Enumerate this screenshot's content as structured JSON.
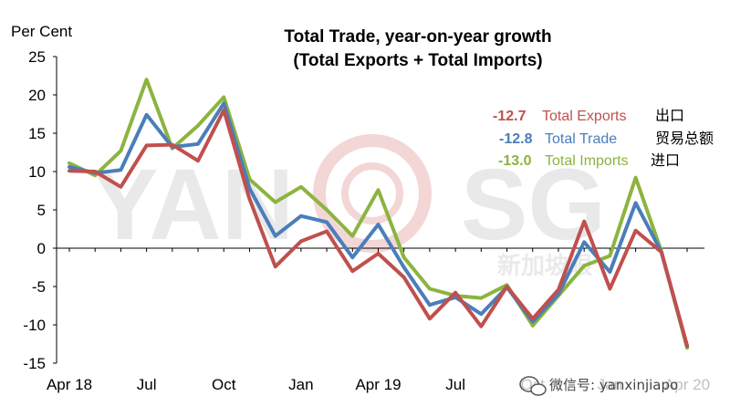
{
  "watermark": {
    "text_left": "YAN",
    "text_right": "SG",
    "text_cn": "新加坡眼"
  },
  "footer": {
    "wechat_text": "微信号: yanxinjiapo"
  },
  "chart_data": {
    "type": "line",
    "title_line1": "Total Trade, year-on-year growth",
    "title_line2": "(Total Exports + Total Imports)",
    "ylabel": "Per Cent",
    "ylim": [
      -15,
      25
    ],
    "yticks": [
      25,
      20,
      15,
      10,
      5,
      0,
      -5,
      -10,
      -15
    ],
    "x_tick_labels": [
      {
        "index": 0,
        "label": "Apr 18"
      },
      {
        "index": 3,
        "label": "Jul"
      },
      {
        "index": 6,
        "label": "Oct"
      },
      {
        "index": 9,
        "label": "Jan"
      },
      {
        "index": 12,
        "label": "Apr 19"
      },
      {
        "index": 15,
        "label": "Jul"
      },
      {
        "index": 18,
        "label": "Oct"
      },
      {
        "index": 21,
        "label": "Jan"
      },
      {
        "index": 24,
        "label": "Apr 20"
      }
    ],
    "months": [
      "Apr 18",
      "May 18",
      "Jun 18",
      "Jul 18",
      "Aug 18",
      "Sep 18",
      "Oct 18",
      "Nov 18",
      "Dec 18",
      "Jan 19",
      "Feb 19",
      "Mar 19",
      "Apr 19",
      "May 19",
      "Jun 19",
      "Jul 19",
      "Aug 19",
      "Sep 19",
      "Oct 19",
      "Nov 19",
      "Dec 19",
      "Jan 20",
      "Feb 20",
      "Mar 20",
      "Apr 20"
    ],
    "series": [
      {
        "name": "Total Exports",
        "name_cn": "出口",
        "latest": "-12.7",
        "color": "#c0504d",
        "values": [
          10.1,
          10.0,
          8.0,
          13.4,
          13.5,
          11.4,
          18.0,
          6.4,
          -2.4,
          0.9,
          2.2,
          -3.0,
          -0.7,
          -3.8,
          -9.2,
          -5.8,
          -10.2,
          -5.0,
          -9.2,
          -5.4,
          3.5,
          -5.3,
          2.3,
          -0.5,
          -12.7
        ]
      },
      {
        "name": "Total Trade",
        "name_cn": "贸易总额",
        "latest": "-12.8",
        "color": "#4a7ebb",
        "values": [
          10.6,
          9.8,
          10.2,
          17.4,
          13.2,
          13.6,
          18.9,
          7.8,
          1.6,
          4.2,
          3.4,
          -1.2,
          3.1,
          -2.5,
          -7.4,
          -6.4,
          -8.6,
          -5.1,
          -9.6,
          -6.0,
          0.8,
          -3.1,
          5.9,
          -0.5,
          -12.8
        ]
      },
      {
        "name": "Total Imports",
        "name_cn": "进口",
        "latest": "-13.0",
        "color": "#8cb43f",
        "values": [
          11.1,
          9.5,
          12.7,
          22.0,
          13.0,
          16.0,
          19.7,
          9.0,
          6.0,
          8.0,
          5.0,
          1.6,
          7.6,
          -1.2,
          -5.3,
          -6.2,
          -6.5,
          -4.8,
          -10.1,
          -6.2,
          -2.3,
          -1.0,
          9.2,
          -0.4,
          -13.0
        ]
      }
    ]
  }
}
